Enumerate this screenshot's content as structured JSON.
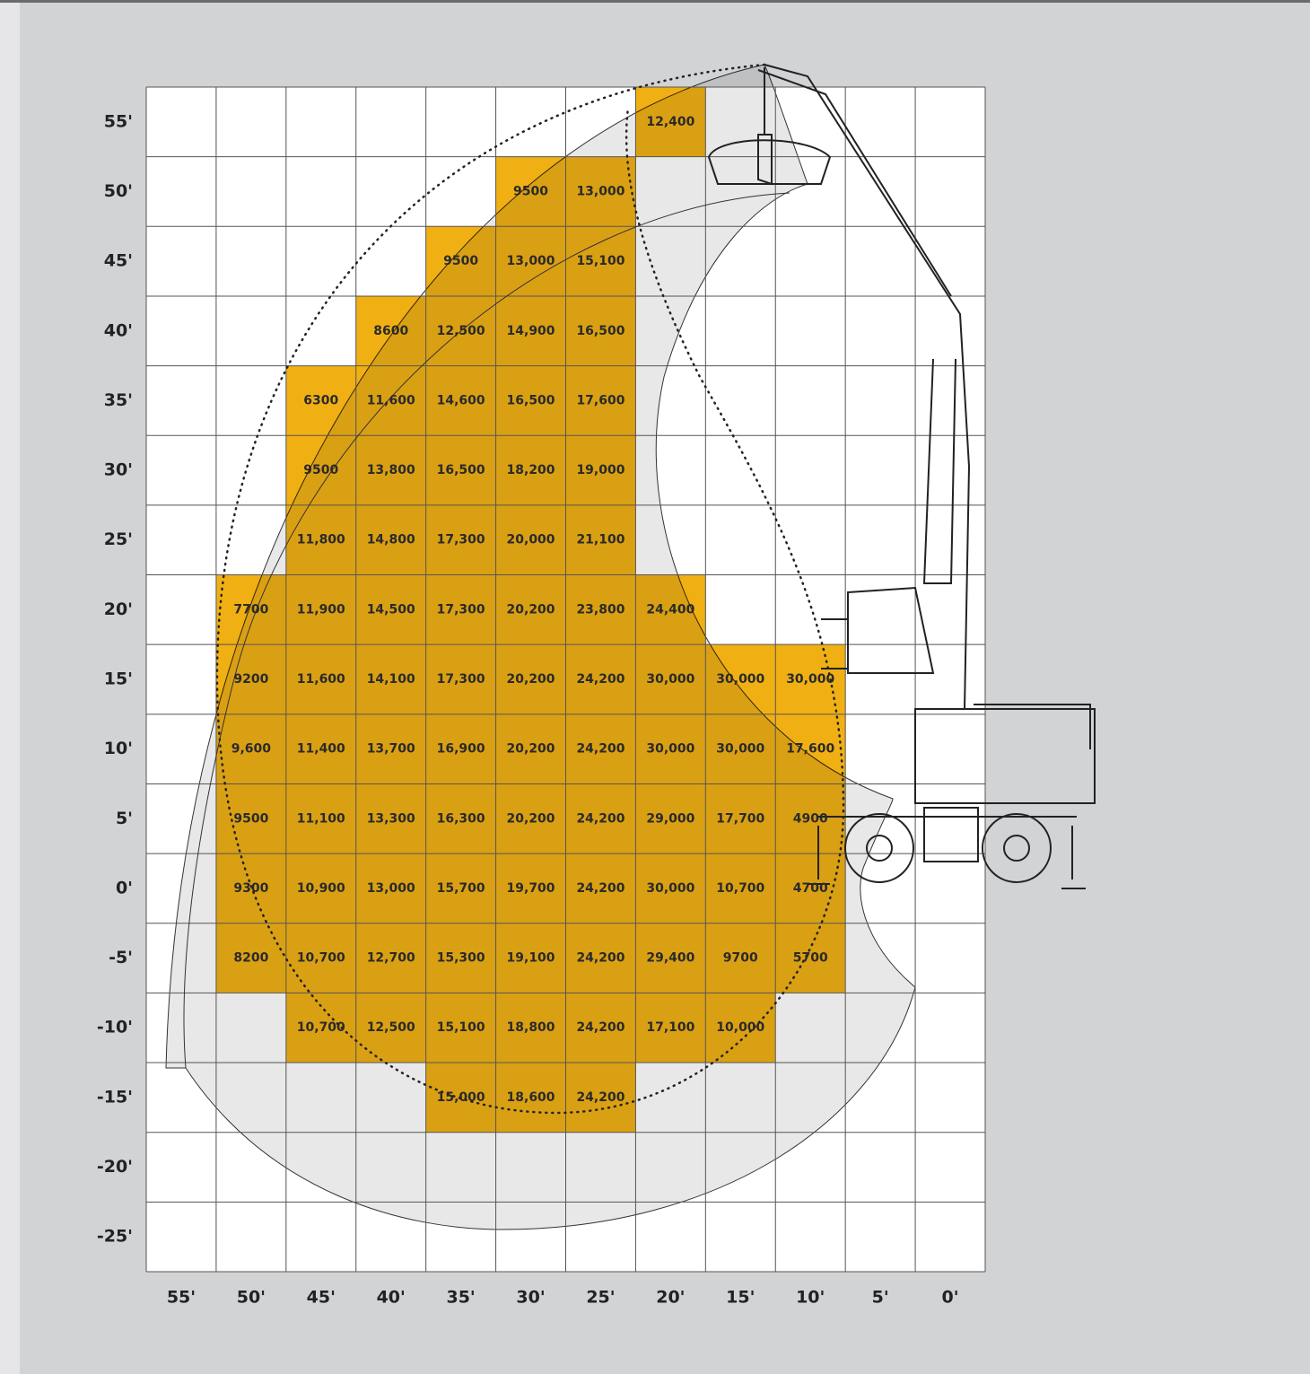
{
  "grid": {
    "columns": [
      "55'",
      "50'",
      "45'",
      "40'",
      "35'",
      "30'",
      "25'",
      "20'",
      "15'",
      "10'",
      "5'",
      "0'"
    ],
    "rows": [
      {
        "label": "55'",
        "cells": [
          null,
          null,
          null,
          null,
          null,
          null,
          null,
          "12,400",
          null,
          null,
          null,
          null
        ]
      },
      {
        "label": "50'",
        "cells": [
          null,
          null,
          null,
          null,
          null,
          "9500",
          "13,000",
          null,
          null,
          null,
          null,
          null
        ]
      },
      {
        "label": "45'",
        "cells": [
          null,
          null,
          null,
          null,
          "9500",
          "13,000",
          "15,100",
          null,
          null,
          null,
          null,
          null
        ]
      },
      {
        "label": "40'",
        "cells": [
          null,
          null,
          null,
          "8600",
          "12,500",
          "14,900",
          "16,500",
          null,
          null,
          null,
          null,
          null
        ]
      },
      {
        "label": "35'",
        "cells": [
          null,
          null,
          "6300",
          "11,600",
          "14,600",
          "16,500",
          "17,600",
          null,
          null,
          null,
          null,
          null
        ]
      },
      {
        "label": "30'",
        "cells": [
          null,
          null,
          "9500",
          "13,800",
          "16,500",
          "18,200",
          "19,000",
          null,
          null,
          null,
          null,
          null
        ]
      },
      {
        "label": "25'",
        "cells": [
          null,
          null,
          "11,800",
          "14,800",
          "17,300",
          "20,000",
          "21,100",
          null,
          null,
          null,
          null,
          null
        ]
      },
      {
        "label": "20'",
        "cells": [
          null,
          "7700",
          "11,900",
          "14,500",
          "17,300",
          "20,200",
          "23,800",
          "24,400",
          null,
          null,
          null,
          null
        ]
      },
      {
        "label": "15'",
        "cells": [
          null,
          "9200",
          "11,600",
          "14,100",
          "17,300",
          "20,200",
          "24,200",
          "30,000",
          "30,000",
          "30,000",
          null,
          null
        ]
      },
      {
        "label": "10'",
        "cells": [
          null,
          "9,600",
          "11,400",
          "13,700",
          "16,900",
          "20,200",
          "24,200",
          "30,000",
          "30,000",
          "17,600",
          null,
          null
        ]
      },
      {
        "label": "5'",
        "cells": [
          null,
          "9500",
          "11,100",
          "13,300",
          "16,300",
          "20,200",
          "24,200",
          "29,000",
          "17,700",
          "4900",
          null,
          null
        ]
      },
      {
        "label": "0'",
        "cells": [
          null,
          "9300",
          "10,900",
          "13,000",
          "15,700",
          "19,700",
          "24,200",
          "30,000",
          "10,700",
          "4700",
          null,
          null
        ]
      },
      {
        "label": "-5'",
        "cells": [
          null,
          "8200",
          "10,700",
          "12,700",
          "15,300",
          "19,100",
          "24,200",
          "29,400",
          "9700",
          "5700",
          null,
          null
        ]
      },
      {
        "label": "-10'",
        "cells": [
          null,
          null,
          "10,700",
          "12,500",
          "15,100",
          "18,800",
          "24,200",
          "17,100",
          "10,000",
          null,
          null,
          null
        ]
      },
      {
        "label": "-15'",
        "cells": [
          null,
          null,
          null,
          null,
          "15,000",
          "18,600",
          "24,200",
          null,
          null,
          null,
          null,
          null
        ]
      },
      {
        "label": "-20'",
        "cells": [
          null,
          null,
          null,
          null,
          null,
          null,
          null,
          null,
          null,
          null,
          null,
          null
        ]
      },
      {
        "label": "-25'",
        "cells": [
          null,
          null,
          null,
          null,
          null,
          null,
          null,
          null,
          null,
          null,
          null,
          null
        ]
      }
    ]
  }
}
